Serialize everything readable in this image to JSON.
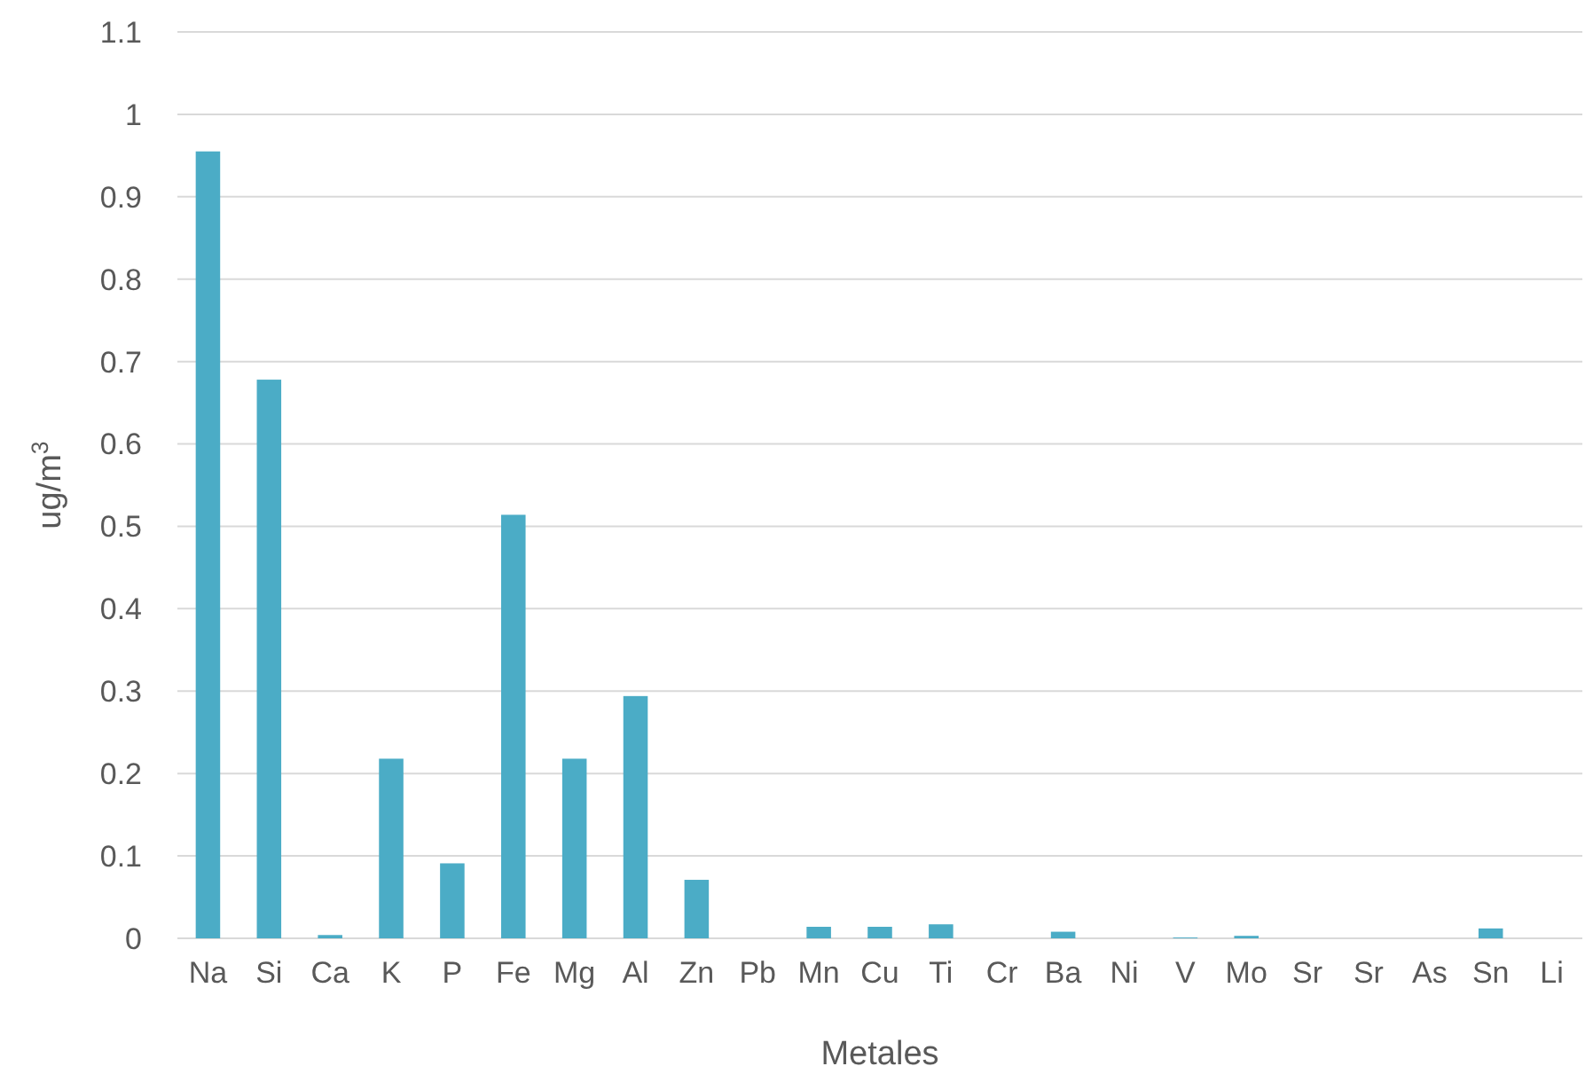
{
  "chart_data": {
    "type": "bar",
    "xlabel": "Metales",
    "ylabel": "ug/m$^{3}$",
    "categories": [
      "Na",
      "Si",
      "Ca",
      "K",
      "P",
      "Fe",
      "Mg",
      "Al",
      "Zn",
      "Pb",
      "Mn",
      "Cu",
      "Ti",
      "Cr",
      "Ba",
      "Ni",
      "V",
      "Mo",
      "Sr",
      "Sr",
      "As",
      "Sn",
      "Li"
    ],
    "values": [
      0.955,
      0.678,
      0.004,
      0.218,
      0.091,
      0.514,
      0.218,
      0.294,
      0.071,
      0,
      0.014,
      0.014,
      0.017,
      0,
      0.008,
      0,
      0.001,
      0.003,
      0,
      0,
      0,
      0.012,
      0
    ],
    "color": "#4bacc6",
    "ylim": [
      0,
      1.1
    ],
    "yticks": [
      0,
      {
        "value": 0.1,
        "label": "0.1"
      },
      {
        "value": 0.2,
        "label": "0.2"
      },
      {
        "value": 0.3,
        "label": "0.3"
      },
      {
        "value": 0.4,
        "label": "0.4"
      },
      {
        "value": 0.5,
        "label": "0.5"
      },
      {
        "value": 0.6,
        "label": "0.6"
      },
      {
        "value": 0.7,
        "label": "0.7"
      },
      {
        "value": 0.8,
        "label": "0.8"
      },
      {
        "value": 0.9,
        "label": "0.9"
      },
      1,
      {
        "value": 1.1,
        "label": "1.1"
      }
    ],
    "grid": "y"
  }
}
